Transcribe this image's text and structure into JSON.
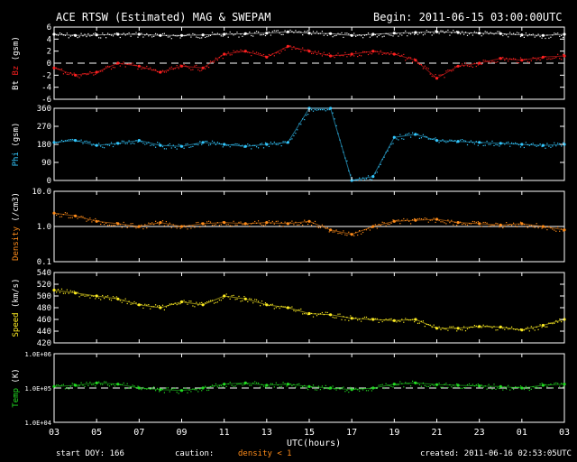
{
  "header": {
    "title": "ACE RTSW (Estimated) MAG & SWEPAM",
    "begin": "Begin: 2011-06-15 03:00:00UTC"
  },
  "footer": {
    "start_doy": "start DOY: 166",
    "caution": "caution:",
    "caution_note": "density < 1",
    "created": "created: 2011-06-16 02:53:05UTC"
  },
  "colors": {
    "bt": "#ffffff",
    "bz": "#ff2020",
    "phi": "#33c8ff",
    "density": "#ff8c1a",
    "speed": "#ffee22",
    "temp": "#22dd22",
    "frame": "#ffffff",
    "background": "#000000"
  },
  "chart_data": [
    {
      "type": "scatter",
      "panel": "mag_field",
      "ylabel_parts": [
        "Bt",
        "Bz",
        "(gsm)"
      ],
      "ylim": [
        -6,
        6
      ],
      "yticks": [
        "6",
        "4",
        "2",
        "0",
        "-2",
        "-4",
        "-6"
      ],
      "dashed_reference": 0,
      "x": [
        3,
        4,
        5,
        6,
        7,
        8,
        9,
        10,
        11,
        12,
        13,
        14,
        15,
        16,
        17,
        18,
        19,
        20,
        21,
        22,
        23,
        24,
        25,
        26,
        27
      ],
      "series": [
        {
          "name": "Bt",
          "values": [
            4.8,
            4.6,
            4.7,
            4.8,
            4.8,
            4.6,
            4.6,
            4.7,
            4.8,
            4.9,
            5.0,
            5.2,
            5.0,
            4.9,
            4.6,
            4.8,
            5.0,
            5.1,
            5.2,
            5.1,
            5.0,
            4.9,
            4.7,
            4.6,
            4.8
          ]
        },
        {
          "name": "Bz",
          "values": [
            -0.8,
            -2.0,
            -1.5,
            0.0,
            -0.5,
            -1.5,
            -0.5,
            -0.8,
            1.5,
            2.0,
            1.0,
            2.8,
            2.0,
            1.2,
            1.5,
            2.0,
            1.5,
            0.5,
            -2.5,
            -0.5,
            0.0,
            0.8,
            0.5,
            1.0,
            1.2
          ]
        }
      ]
    },
    {
      "type": "scatter",
      "panel": "phi",
      "ylabel_parts": [
        "Phi",
        "(gsm)"
      ],
      "ylim": [
        0,
        360
      ],
      "yticks": [
        "360",
        "270",
        "180",
        "90",
        "0"
      ],
      "x": [
        3,
        4,
        5,
        6,
        7,
        8,
        9,
        10,
        11,
        12,
        13,
        14,
        15,
        16,
        17,
        18,
        19,
        20,
        21,
        22,
        23,
        24,
        25,
        26,
        27
      ],
      "series": [
        {
          "name": "Phi",
          "values": [
            190,
            200,
            175,
            185,
            200,
            175,
            170,
            190,
            180,
            170,
            180,
            190,
            360,
            360,
            0,
            20,
            215,
            230,
            200,
            195,
            190,
            185,
            180,
            175,
            180
          ]
        }
      ]
    },
    {
      "type": "scatter",
      "panel": "density",
      "ylabel_parts": [
        "Density",
        "(/cm3)"
      ],
      "ylim": [
        0.1,
        10
      ],
      "yscale": "log",
      "yticks": [
        "10.0",
        "1.0",
        "0.1"
      ],
      "reference_line": 1.0,
      "x": [
        3,
        4,
        5,
        6,
        7,
        8,
        9,
        10,
        11,
        12,
        13,
        14,
        15,
        16,
        17,
        18,
        19,
        20,
        21,
        22,
        23,
        24,
        25,
        26,
        27
      ],
      "series": [
        {
          "name": "Density",
          "values": [
            2.4,
            2.0,
            1.4,
            1.2,
            1.0,
            1.3,
            1.0,
            1.2,
            1.3,
            1.2,
            1.3,
            1.2,
            1.4,
            0.8,
            0.6,
            1.0,
            1.4,
            1.5,
            1.6,
            1.3,
            1.2,
            1.1,
            1.2,
            1.0,
            0.8
          ]
        }
      ]
    },
    {
      "type": "scatter",
      "panel": "speed",
      "ylabel_parts": [
        "Speed",
        "(km/s)"
      ],
      "ylim": [
        420,
        540
      ],
      "yticks": [
        "540",
        "520",
        "500",
        "480",
        "460",
        "440",
        "420"
      ],
      "x": [
        3,
        4,
        5,
        6,
        7,
        8,
        9,
        10,
        11,
        12,
        13,
        14,
        15,
        16,
        17,
        18,
        19,
        20,
        21,
        22,
        23,
        24,
        25,
        26,
        27
      ],
      "series": [
        {
          "name": "Speed",
          "values": [
            510,
            505,
            500,
            495,
            485,
            480,
            490,
            485,
            500,
            495,
            485,
            480,
            470,
            468,
            462,
            460,
            458,
            460,
            445,
            445,
            448,
            447,
            442,
            450,
            460
          ]
        }
      ]
    },
    {
      "type": "scatter",
      "panel": "temp",
      "ylabel_parts": [
        "Temp",
        "(K)"
      ],
      "ylim": [
        10000,
        1000000
      ],
      "yscale": "log",
      "yticks": [
        "1.0E+06",
        "1.0E+05",
        "1.0E+04"
      ],
      "dashed_reference": 100000,
      "x": [
        3,
        4,
        5,
        6,
        7,
        8,
        9,
        10,
        11,
        12,
        13,
        14,
        15,
        16,
        17,
        18,
        19,
        20,
        21,
        22,
        23,
        24,
        25,
        26,
        27
      ],
      "series": [
        {
          "name": "Temp",
          "values": [
            110000,
            120000,
            140000,
            130000,
            100000,
            90000,
            85000,
            100000,
            130000,
            140000,
            120000,
            130000,
            110000,
            100000,
            90000,
            100000,
            130000,
            140000,
            125000,
            120000,
            115000,
            110000,
            100000,
            120000,
            130000
          ]
        }
      ]
    }
  ],
  "x_axis": {
    "label": "UTC(hours)",
    "range": [
      3,
      27
    ],
    "tick_labels": [
      "03",
      "05",
      "07",
      "09",
      "11",
      "13",
      "15",
      "17",
      "19",
      "21",
      "23",
      "01",
      "03"
    ]
  }
}
